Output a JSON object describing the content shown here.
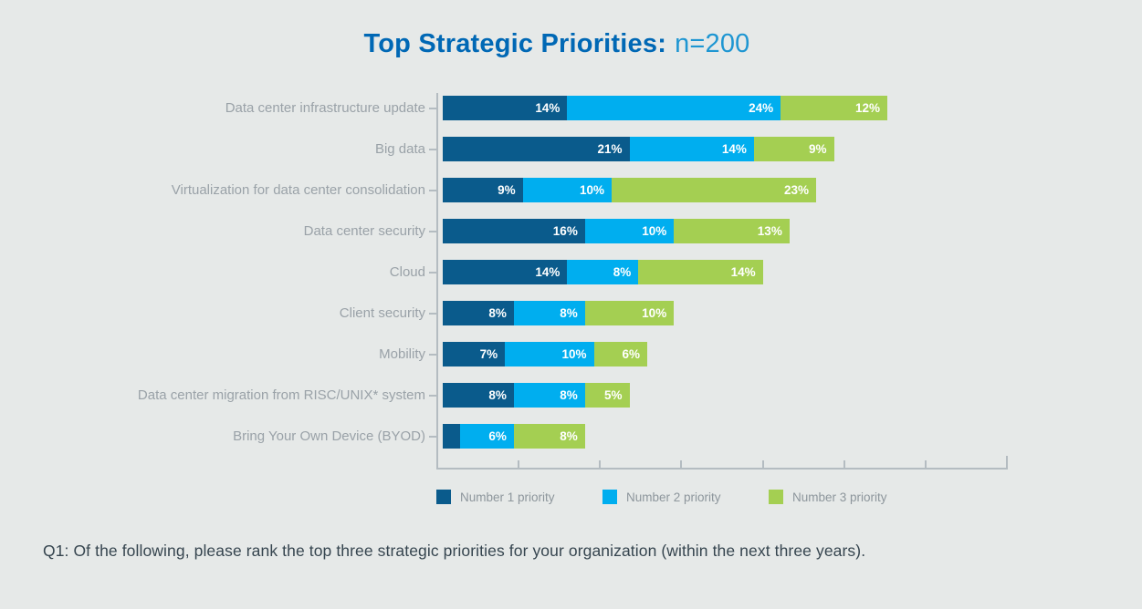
{
  "title": {
    "main": "Top Strategic Priorities:",
    "sample": "n=200"
  },
  "chart_data": {
    "type": "bar",
    "orientation": "horizontal",
    "stacked": true,
    "title": "Top Strategic Priorities: n=200",
    "categories": [
      "Data center infrastructure update",
      "Big data",
      "Virtualization for data center consolidation",
      "Data center security",
      "Cloud",
      "Client security",
      "Mobility",
      "Data center migration from RISC/UNIX* system",
      "Bring Your Own Device (BYOD)"
    ],
    "series": [
      {
        "name": "Number 1 priority",
        "color": "#0a5b8c",
        "values": [
          14,
          21,
          9,
          16,
          14,
          8,
          7,
          8,
          2
        ]
      },
      {
        "name": "Number 2 priority",
        "color": "#00aeef",
        "values": [
          24,
          14,
          10,
          10,
          8,
          8,
          10,
          8,
          6
        ]
      },
      {
        "name": "Number 3 priority",
        "color": "#a4cf52",
        "values": [
          12,
          9,
          23,
          13,
          14,
          10,
          6,
          5,
          8
        ]
      }
    ],
    "segment_labels": [
      [
        "14%",
        "24%",
        "12%"
      ],
      [
        "21%",
        "14%",
        "9%"
      ],
      [
        "9%",
        "10%",
        "23%"
      ],
      [
        "16%",
        "10%",
        "13%"
      ],
      [
        "14%",
        "8%",
        "14%"
      ],
      [
        "8%",
        "8%",
        "10%"
      ],
      [
        "7%",
        "10%",
        "6%"
      ],
      [
        "8%",
        "8%",
        "5%"
      ],
      [
        "",
        "6%",
        "8%"
      ]
    ],
    "value_unit": "%",
    "axis_max": 64,
    "x_tick_count": 8,
    "grid": false,
    "legend_position": "bottom"
  },
  "legend": {
    "items": [
      {
        "label": "Number 1 priority",
        "color": "#0a5b8c"
      },
      {
        "label": "Number 2 priority",
        "color": "#00aeef"
      },
      {
        "label": "Number 3 priority",
        "color": "#a4cf52"
      }
    ]
  },
  "footnote": "Q1: Of the following, please rank the top three strategic priorities for your organization (within the next three years).",
  "colors": {
    "background": "#e6e9e8",
    "title_main": "#0068b5",
    "title_sub": "#1e96d2",
    "axis": "#b4bcc1",
    "category_label": "#9aa2a8",
    "legend_text": "#8d969c",
    "footnote_text": "#36454f",
    "bar_value_text": "#ffffff"
  }
}
